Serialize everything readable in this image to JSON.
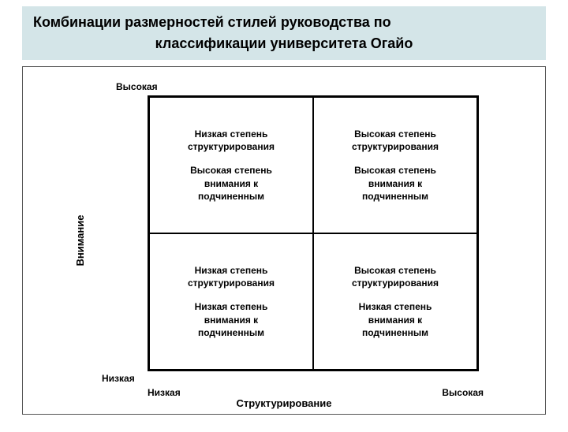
{
  "title": {
    "line1": "Комбинации размерностей стилей руководства по",
    "line2": "классификации университета Огайо",
    "background_color": "#d4e5e8",
    "text_color": "#000000",
    "fontsize": 18,
    "fontweight": "bold"
  },
  "diagram": {
    "type": "matrix",
    "rows": 2,
    "cols": 2,
    "frame_border_color": "#555555",
    "matrix_border_color": "#000000",
    "background_color": "#ffffff",
    "y_axis": {
      "label": "Внимание",
      "high": "Высокая",
      "low": "Низкая",
      "fontsize": 13
    },
    "x_axis": {
      "label": "Структурирование",
      "high": "Высокая",
      "low": "Низкая",
      "fontsize": 13
    },
    "cells": {
      "top_left": {
        "block1": "Низкая степень\nструктурирования",
        "block2": "Высокая степень\nвнимания к\nподчиненным"
      },
      "top_right": {
        "block1": "Высокая степень\nструктурирования",
        "block2": "Высокая степень\nвнимания к\nподчиненным"
      },
      "bottom_left": {
        "block1": "Низкая степень\nструктурирования",
        "block2": "Низкая степень\nвнимания к\nподчиненным"
      },
      "bottom_right": {
        "block1": "Высокая степень\nструктурирования",
        "block2": "Низкая степень\nвнимания к\nподчиненным"
      }
    },
    "cell_fontsize": 12,
    "cell_fontweight": "bold"
  }
}
